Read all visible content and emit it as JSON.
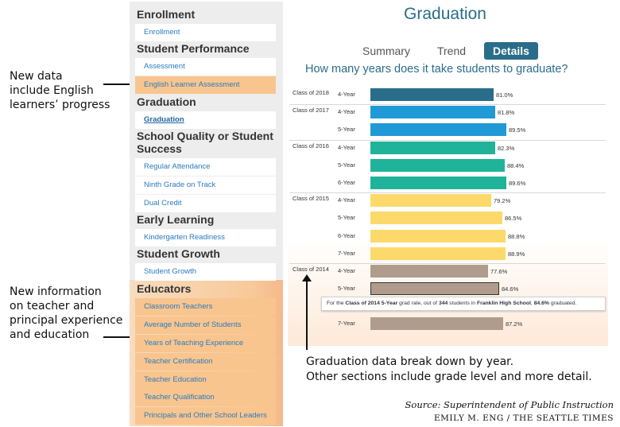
{
  "annotations": {
    "english": [
      "New data",
      "include English",
      "learners’ progress"
    ],
    "educators": [
      "New information",
      "on teacher and",
      "principal experience",
      "and education"
    ],
    "graduation": [
      "Graduation data break down by year.",
      "Other sections include grade level and more detail."
    ]
  },
  "sidebar": {
    "sections": [
      {
        "title": "Enrollment",
        "items": [
          "Enrollment"
        ]
      },
      {
        "title": "Student Performance",
        "items": [
          "Assessment",
          "English Learner Assessment"
        ]
      },
      {
        "title": "Graduation",
        "items": [
          "Graduation"
        ]
      },
      {
        "title_lines": [
          "School Quality or Student",
          "Success"
        ],
        "items": [
          "Regular Attendance",
          "Ninth Grade on Track",
          "Dual Credit"
        ]
      },
      {
        "title": "Early Learning",
        "items": [
          "Kindergarten Readiness"
        ]
      },
      {
        "title": "Student Growth",
        "items": [
          "Student Growth"
        ]
      },
      {
        "title": "Educators",
        "items": [
          "Classroom Teachers",
          "Average Number of Students",
          "Years of Teaching Experience",
          "Teacher Certification",
          "Teacher Education",
          "Teacher Qualification",
          "Principals and Other School Leaders"
        ]
      }
    ],
    "highlight_color": "#f9c58e",
    "link_color": "#2a7bbf"
  },
  "main": {
    "title": "Graduation",
    "tabs": [
      "Summary",
      "Trend",
      "Details"
    ],
    "active_tab": "Details",
    "question": "How many years does it take students to graduate?",
    "tooltip": {
      "prefix": "For the ",
      "class": "Class of 2014 5-Year",
      "mid1": " grad rate, out of ",
      "count": "344",
      "mid2": " students in ",
      "school": "Franklin High School",
      "mid3": ", ",
      "rate": "84.6%",
      "suffix": " graduated."
    }
  },
  "chart_data": {
    "type": "bar",
    "orientation": "horizontal",
    "xlim": [
      0,
      100
    ],
    "groups": [
      {
        "class": "Class of 2018",
        "color": "#2a6d8a",
        "rows": [
          {
            "year": "4-Year",
            "value": 81.0,
            "label": "81.0%"
          }
        ]
      },
      {
        "class": "Class of 2017",
        "color": "#1f9ad6",
        "rows": [
          {
            "year": "4-Year",
            "value": 81.8,
            "label": "81.8%"
          },
          {
            "year": "5-Year",
            "value": 89.5,
            "label": "89.5%"
          }
        ]
      },
      {
        "class": "Class of 2016",
        "color": "#1fb39a",
        "rows": [
          {
            "year": "4-Year",
            "value": 82.3,
            "label": "82.3%"
          },
          {
            "year": "5-Year",
            "value": 88.4,
            "label": "88.4%"
          },
          {
            "year": "6-Year",
            "value": 89.6,
            "label": "89.6%"
          }
        ]
      },
      {
        "class": "Class of 2015",
        "color": "#fcd96a",
        "rows": [
          {
            "year": "4-Year",
            "value": 79.2,
            "label": "79.2%"
          },
          {
            "year": "5-Year",
            "value": 86.5,
            "label": "86.5%"
          },
          {
            "year": "6-Year",
            "value": 88.8,
            "label": "88.8%"
          },
          {
            "year": "7-Year",
            "value": 88.9,
            "label": "88.9%"
          }
        ]
      },
      {
        "class": "Class of 2014",
        "color": "#b09c8c",
        "rows": [
          {
            "year": "4-Year",
            "value": 77.6,
            "label": "77.6%"
          },
          {
            "year": "5-Year",
            "value": 84.6,
            "label": "84.6%"
          },
          {
            "year": "7-Year",
            "value": 87.2,
            "label": "87.2%"
          }
        ]
      }
    ]
  },
  "footer": {
    "source": "Source: Superintendent of Public Instruction",
    "credit": "EMILY M. ENG / THE SEATTLE TIMES"
  }
}
